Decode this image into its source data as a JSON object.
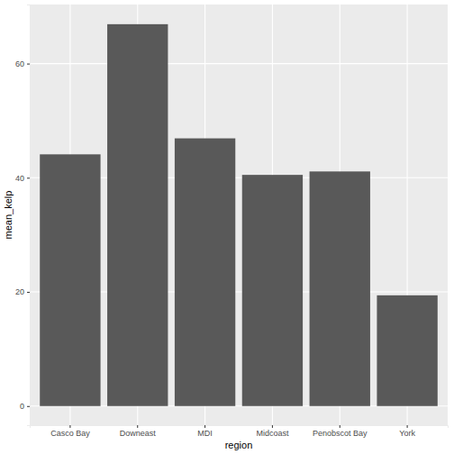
{
  "chart_data": {
    "type": "bar",
    "x_label": "region",
    "y_label": "mean_kelp",
    "categories": [
      "Casco Bay",
      "Downeast",
      "MDI",
      "Midcoast",
      "Penobscot Bay",
      "York"
    ],
    "values": [
      44.1,
      66.9,
      46.9,
      40.5,
      41.1,
      19.4
    ],
    "color": "#595959",
    "ylim": [
      -3.35,
      70.35
    ],
    "yticks": [
      0,
      20,
      40,
      60
    ],
    "grid": true
  }
}
